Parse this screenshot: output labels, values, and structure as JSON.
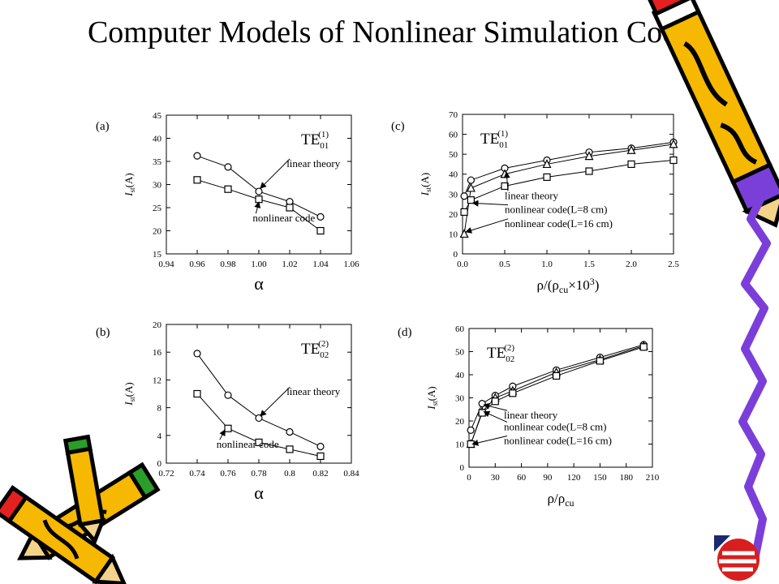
{
  "slide": {
    "title": "Computer Models of Nonlinear Simulation Code"
  },
  "chart_data": [
    {
      "type": "line",
      "panel_label": "(a)",
      "mode_label": {
        "main": "TE",
        "sub": "01",
        "sup": "(1)"
      },
      "xlabel": "α",
      "ylabel": {
        "main": "I",
        "sub": "st",
        "rest": "(A)"
      },
      "xlim": [
        0.94,
        1.06
      ],
      "ylim": [
        15,
        45
      ],
      "xticks": [
        0.94,
        0.96,
        0.98,
        1.0,
        1.02,
        1.04,
        1.06
      ],
      "xtick_labels": [
        "0.94",
        "0.96",
        "0.98",
        "1.00",
        "1.02",
        "1.04",
        "1.06"
      ],
      "yticks": [
        15,
        20,
        25,
        30,
        35,
        40,
        45
      ],
      "ytick_labels": [
        "15",
        "20",
        "25",
        "30",
        "35",
        "40",
        "45"
      ],
      "series": [
        {
          "marker": "circle",
          "x": [
            0.96,
            0.98,
            1.0,
            1.02,
            1.04
          ],
          "y": [
            36.2,
            33.8,
            28.5,
            26.3,
            23.0
          ]
        },
        {
          "marker": "square",
          "x": [
            0.96,
            0.98,
            1.0,
            1.02,
            1.04
          ],
          "y": [
            31.0,
            29.0,
            26.8,
            25.0,
            20.0
          ]
        }
      ],
      "annotations": [
        {
          "text": "linear theory",
          "tx": 1.018,
          "ty": 33.8,
          "ax": 1.001,
          "ay": 29.2
        },
        {
          "text": "nonlinear code",
          "tx": 0.996,
          "ty": 22.0,
          "ax": 1.0,
          "ay": 26.2
        }
      ]
    },
    {
      "type": "line",
      "panel_label": "(c)",
      "mode_label": {
        "main": "TE",
        "sub": "01",
        "sup": "(1)"
      },
      "xlabel": "ρ/(ρcu×10³)",
      "xlabel_parts": {
        "a": "ρ/(ρ",
        "sub": "cu",
        "b": "×10",
        "sup": "3",
        "c": ")"
      },
      "ylabel": {
        "main": "I",
        "sub": "st",
        "rest": "(A)"
      },
      "xlim": [
        0.0,
        2.5
      ],
      "ylim": [
        0,
        70
      ],
      "xticks": [
        0.0,
        0.5,
        1.0,
        1.5,
        2.0,
        2.5
      ],
      "xtick_labels": [
        "0.0",
        "0.5",
        "1.0",
        "1.5",
        "2.0",
        "2.5"
      ],
      "yticks": [
        0,
        10,
        20,
        30,
        40,
        50,
        60,
        70
      ],
      "ytick_labels": [
        "0",
        "10",
        "20",
        "30",
        "40",
        "50",
        "60",
        "70"
      ],
      "series": [
        {
          "marker": "circle",
          "x": [
            0.02,
            0.1,
            0.5,
            1.0,
            1.5,
            2.0,
            2.5
          ],
          "y": [
            29,
            37,
            43,
            47,
            51,
            53,
            56
          ]
        },
        {
          "marker": "triangle",
          "x": [
            0.02,
            0.1,
            0.5,
            1.0,
            1.5,
            2.0,
            2.5
          ],
          "y": [
            10,
            33,
            40,
            45,
            49,
            52,
            55
          ]
        },
        {
          "marker": "square",
          "x": [
            0.02,
            0.1,
            0.5,
            1.0,
            1.5,
            2.0,
            2.5
          ],
          "y": [
            21,
            27,
            34,
            38.5,
            41.5,
            45,
            47
          ]
        }
      ],
      "annotations": [
        {
          "text": "linear theory",
          "tx": 0.5,
          "ty": 27.5,
          "ax": 0.52,
          "ay": 41.0
        },
        {
          "text": "nonlinear code(L=8 cm)",
          "tx": 0.5,
          "ty": 20.5,
          "ax": 0.12,
          "ay": 25.5
        },
        {
          "text": "nonlinear code(L=16 cm)",
          "tx": 0.5,
          "ty": 13.5,
          "ax": 0.04,
          "ay": 11.0
        }
      ]
    },
    {
      "type": "line",
      "panel_label": "(b)",
      "mode_label": {
        "main": "TE",
        "sub": "02",
        "sup": "(2)"
      },
      "xlabel": "α",
      "ylabel": {
        "main": "I",
        "sub": "st",
        "rest": "(A)"
      },
      "xlim": [
        0.72,
        0.84
      ],
      "ylim": [
        0,
        20
      ],
      "xticks": [
        0.72,
        0.74,
        0.76,
        0.78,
        0.8,
        0.82,
        0.84
      ],
      "xtick_labels": [
        "0.72",
        "0.74",
        "0.76",
        "0.78",
        "0.8",
        "0.82",
        "0.84"
      ],
      "yticks": [
        0,
        4,
        8,
        12,
        16,
        20
      ],
      "ytick_labels": [
        "0",
        "4",
        "8",
        "12",
        "16",
        "20"
      ],
      "series": [
        {
          "marker": "circle",
          "x": [
            0.74,
            0.76,
            0.78,
            0.8,
            0.82
          ],
          "y": [
            15.8,
            9.8,
            6.5,
            4.5,
            2.4
          ]
        },
        {
          "marker": "square",
          "x": [
            0.74,
            0.76,
            0.78,
            0.8,
            0.82
          ],
          "y": [
            10.0,
            5.0,
            3.0,
            2.0,
            1.0
          ]
        }
      ],
      "annotations": [
        {
          "text": "linear theory",
          "tx": 0.798,
          "ty": 9.8,
          "ax": 0.781,
          "ay": 6.8
        },
        {
          "text": "nonlinear code",
          "tx": 0.7525,
          "ty": 2.2,
          "ax": 0.758,
          "ay": 4.8
        }
      ]
    },
    {
      "type": "line",
      "panel_label": "(d)",
      "mode_label": {
        "main": "TE",
        "sub": "02",
        "sup": "(2)"
      },
      "xlabel": "ρ/ρcu",
      "xlabel_parts": {
        "a": "ρ/ρ",
        "sub": "cu"
      },
      "ylabel": {
        "main": "I",
        "sub": "st",
        "rest": "(A)"
      },
      "xlim": [
        0,
        210
      ],
      "ylim": [
        0,
        60
      ],
      "xticks": [
        0,
        30,
        60,
        90,
        120,
        150,
        180,
        210
      ],
      "xtick_labels": [
        "0",
        "30",
        "60",
        "90",
        "120",
        "150",
        "180",
        "210"
      ],
      "yticks": [
        0,
        10,
        20,
        30,
        40,
        50,
        60
      ],
      "ytick_labels": [
        "0",
        "10",
        "20",
        "30",
        "40",
        "50",
        "60"
      ],
      "series": [
        {
          "marker": "circle",
          "x": [
            2,
            15,
            30,
            50,
            100,
            150,
            200
          ],
          "y": [
            16,
            27.5,
            31,
            35,
            42,
            47.5,
            53
          ]
        },
        {
          "marker": "triangle",
          "x": [
            2,
            15,
            30,
            50,
            100,
            150,
            200
          ],
          "y": [
            10,
            24,
            30,
            33,
            41,
            46.5,
            52.5
          ]
        },
        {
          "marker": "square",
          "x": [
            2,
            15,
            30,
            50,
            100,
            150,
            200
          ],
          "y": [
            10,
            23.5,
            28.5,
            32,
            39.5,
            46,
            52
          ]
        }
      ],
      "annotations": [
        {
          "text": "linear theory",
          "tx": 40,
          "ty": 21,
          "ax": 17,
          "ay": 27
        },
        {
          "text": "nonlinear code(L=8 cm)",
          "tx": 40,
          "ty": 16,
          "ax": 17,
          "ay": 24
        },
        {
          "text": "nonlinear code(L=16 cm)",
          "tx": 40,
          "ty": 10,
          "ax": 4,
          "ay": 10
        }
      ]
    }
  ]
}
